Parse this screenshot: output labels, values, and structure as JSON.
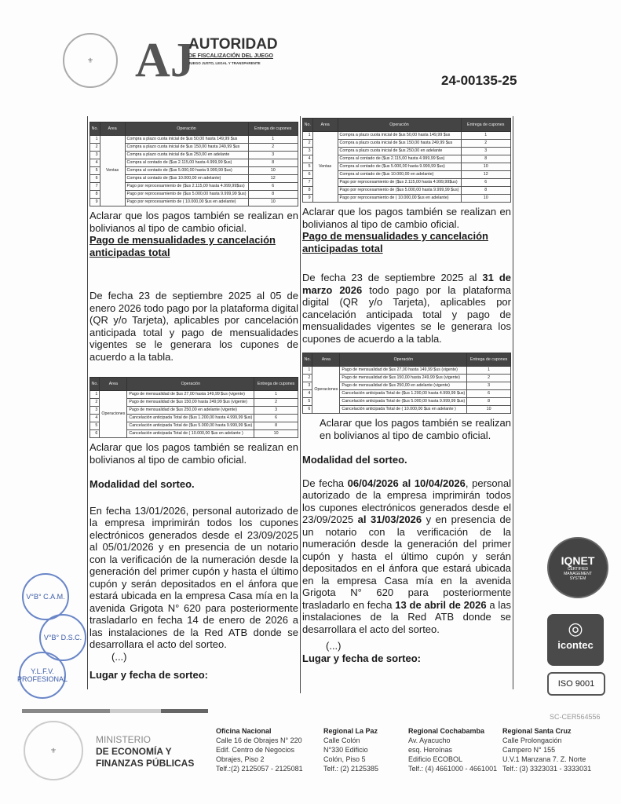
{
  "header": {
    "logo_initials": "AJ",
    "logo_title": "AUTORIDAD",
    "logo_sub": "DE FISCALIZACIÓN DEL JUEGO",
    "logo_tag": "JUEGO JUSTO, LEGAL Y TRANSPARENTE",
    "doc_number": "24-00135-25"
  },
  "table_headers": [
    "No.",
    "Area",
    "Operación",
    "Entrega de cupones"
  ],
  "table1": {
    "area": "Ventas",
    "rows": [
      [
        "1",
        "Compra a plazo cuota inicial de $us 50,00 hasta 149,99 $us",
        "1"
      ],
      [
        "2",
        "Compra a plazo cuota inicial de $us 150,00 hasta 249,99 $us",
        "2"
      ],
      [
        "3",
        "Compra a plazo cuota inicial de $us 250,00 en adelante",
        "3"
      ],
      [
        "4",
        "Compra al contado de ($us 2.115,00 hasta 4.999,99 $us)",
        "8"
      ],
      [
        "5",
        "Compra al contado de ($us 5.000,00 hasta 9.999,99 $us)",
        "10"
      ],
      [
        "6",
        "Compra al contado de ($us 10.000,00 en adelante)",
        "12"
      ],
      [
        "7",
        "Pago por reprocesamiento de ($us 2.115,00 hasta 4.999,99$us)",
        "6"
      ],
      [
        "8",
        "Pago por reprocesamiento de ($us 5.000,00 hasta 9.999,99 $us)",
        "8"
      ],
      [
        "9",
        "Pago por reprocesamiento de ( 10.000,00 $us en adelante)",
        "10"
      ]
    ]
  },
  "table2": {
    "area": "Operaciones",
    "rows": [
      [
        "1",
        "Pago de mensualidad de $us 27,00 hasta 149,99 $us (vigente)",
        "1"
      ],
      [
        "2",
        "Pago de mensualidad de $us 150,00 hasta 249,99 $us (vigente)",
        "2"
      ],
      [
        "3",
        "Pago de mensualidad de $us 250,00 en adelante (vigente)",
        "3"
      ],
      [
        "4",
        "Cancelación anticipada Total de ($us 1.200,00 hasta 4.999,99 $us)",
        "6"
      ],
      [
        "5",
        "Cancelación anticipada Total de ($us 5.000,00 hasta 9.999,99 $us)",
        "8"
      ],
      [
        "6",
        "Cancelación anticipada Total de ( 10.000,00 $us en adelante )",
        "10"
      ]
    ]
  },
  "left": {
    "aclarar1": "Aclarar que los pagos también se realizan en bolivianos al tipo de cambio oficial.",
    "heading": "Pago de mensualidades y cancelación anticipadas total",
    "para1": "De fecha 23 de septiembre 2025 al 05 de enero 2026 todo pago por la plataforma digital (QR y/o Tarjeta), aplicables por cancelación anticipada total y pago de mensualidades vigentes se le generara los cupones de acuerdo a la tabla.",
    "aclarar2": "Aclarar que los pagos también se realizan en bolivianos al tipo de cambio oficial.",
    "modalidad": "Modalidad del sorteo.",
    "para2": "En fecha 13/01/2026, personal autorizado de la empresa imprimirán todos los cupones electrónicos generados desde el 23/09/2025 al 05/01/2026 y en presencia de un notario con la verificación de la numeración desde la generación del primer cupón y hasta el último cupón y serán depositados en el ánfora que estará ubicada en la empresa Casa mía en la avenida Grigota N° 620 para posteriormente trasladarlo en fecha 14 de enero de 2026 a las instalaciones de la Red ATB donde se desarrollara el acto del sorteo.",
    "ellipsis": "(...)",
    "lugar": "Lugar y fecha de sorteo:"
  },
  "right": {
    "aclarar1": "Aclarar que los pagos también se realizan en bolivianos al tipo de cambio oficial.",
    "heading": "Pago de mensualidades y cancelación anticipadas total",
    "p1a": "De fecha 23 de septiembre 2025 al ",
    "p1b": "31 de marzo 2026",
    "p1c": " todo pago por la plataforma digital (QR y/o Tarjeta), aplicables por cancelación anticipada total y pago de mensualidades vigentes se le generara los cupones de acuerdo a la tabla.",
    "aclarar2": "Aclarar que los pagos también se realizan en bolivianos al tipo de cambio oficial.",
    "modalidad": "Modalidad del sorteo.",
    "p2a": "De fecha ",
    "p2b": "06/04/2026 al 10/04/2026",
    "p2c": ", personal autorizado de la empresa imprimirán todos los cupones electrónicos generados desde el 23/09/2025 ",
    "p2d": "al 31/03/2026",
    "p2e": " y en presencia de un notario con la verificación de la numeración desde la generación del primer cupón y hasta el último cupón y serán depositados en el ánfora que estará ubicada en la empresa Casa mía en la avenida Grigota N° 620 para posteriormente trasladarlo en fecha ",
    "p2f": "13 de abril de 2026",
    "p2g": " a las instalaciones de la Red ATB donde se desarrollara el acto del sorteo.",
    "ellipsis": "(...)",
    "lugar": "Lugar y fecha de sorteo:"
  },
  "certs": {
    "iqnet": "IQNET",
    "iqnet_sub": "CERTIFIED MANAGEMENT SYSTEM",
    "icontec": "icontec",
    "iso": "ISO 9001",
    "cert_code": "SC-CER564556"
  },
  "seals": [
    "V°B° C.A.M.",
    "V°B° D.S.C.",
    "Y.L.F.V. PROFESIONAL"
  ],
  "footer": {
    "ministry": [
      "MINISTERIO",
      "DE ECONOMÍA Y",
      "FINANZAS PÚBLICAS"
    ],
    "offices": [
      {
        "title": "Oficina Nacional",
        "lines": [
          "Calle 16 de Obrajes N° 220",
          "Edif. Centro de Negocios",
          "Obrajes, Piso 2",
          "Telf.:(2) 2125057 - 2125081"
        ]
      },
      {
        "title": "Regional La Paz",
        "lines": [
          "Calle Colón",
          "N°330 Edificio",
          "Colón, Piso 5",
          "Telf.: (2) 2125385"
        ]
      },
      {
        "title": "Regional Cochabamba",
        "lines": [
          "Av. Ayacucho",
          "esq. Heroínas",
          "Edificio ECOBOL",
          "Telf.: (4) 4661000 - 4661001"
        ]
      },
      {
        "title": "Regional Santa Cruz",
        "lines": [
          "Calle Prolongación",
          "Campero N° 155",
          "U.V.1 Manzana 7. Z. Norte",
          "Telf.: (3) 3323031 - 3333031"
        ]
      }
    ]
  }
}
